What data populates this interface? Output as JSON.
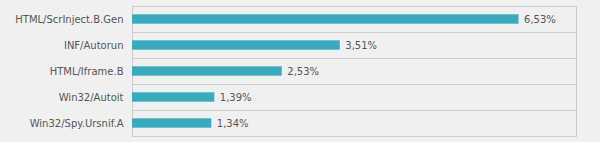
{
  "chart_data": {
    "type": "bar",
    "orientation": "horizontal",
    "categories": [
      "Win32/Spy.Ursnif.A",
      "Win32/Autoit",
      "HTML/Iframe.B",
      "INF/Autorun",
      "HTML/ScrInject.B.Gen"
    ],
    "values": [
      1.34,
      1.39,
      2.53,
      3.51,
      6.53
    ],
    "value_labels": [
      "1,34%",
      "1,39%",
      "2,53%",
      "3,51%",
      "6,53%"
    ],
    "color": "#3aabbd",
    "xlim": [
      0,
      7.5
    ],
    "data_labels": true,
    "tick_labels": "y"
  }
}
